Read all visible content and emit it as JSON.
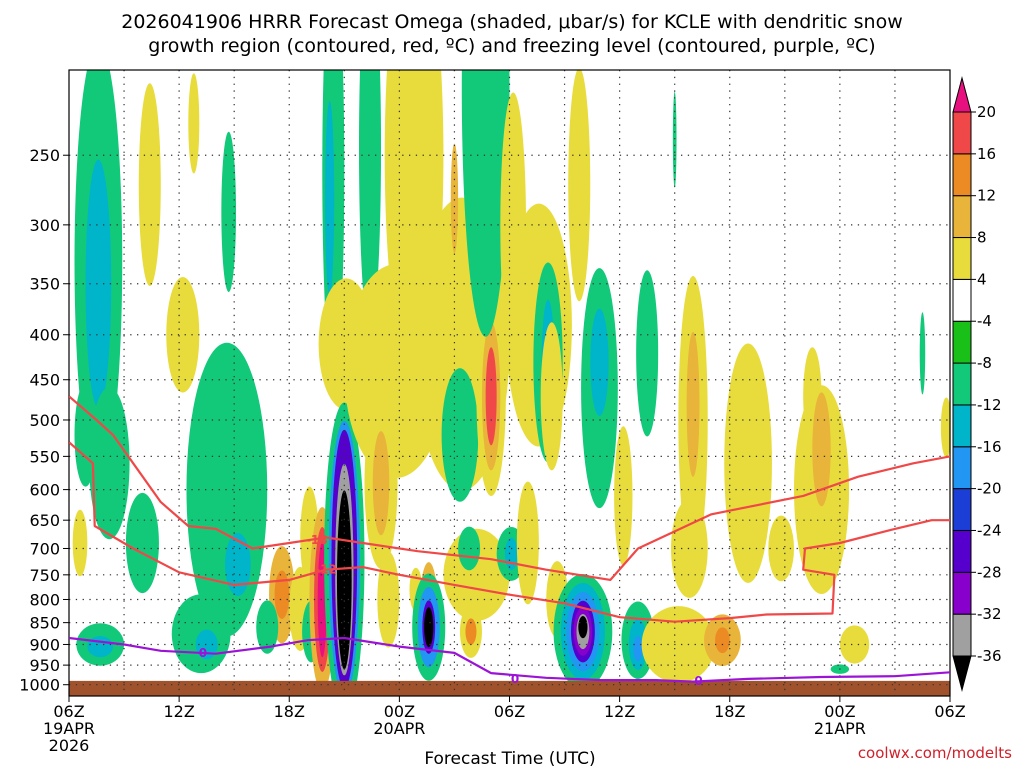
{
  "chart_data": {
    "type": "heatmap",
    "title_line1": "2026041906 HRRR Forecast Omega (shaded, μbar/s) for KCLE with dendritic snow",
    "title_line2": "growth region (contoured, red, ºC) and freezing level (contoured, purple, ºC)",
    "xlabel": "Forecast Time (UTC)",
    "credit": "coolwx.com/modelts",
    "x_range_hours": [
      0,
      48
    ],
    "y_scale": "pressure",
    "y_range_hpa": [
      200,
      1030
    ],
    "y_ticks": [
      250,
      300,
      350,
      400,
      450,
      500,
      550,
      600,
      650,
      700,
      750,
      800,
      850,
      900,
      950,
      1000
    ],
    "x_ticks": [
      {
        "h": 0,
        "l1": "06Z",
        "l2": "19APR",
        "l3": "2026"
      },
      {
        "h": 6,
        "l1": "12Z",
        "l2": "",
        "l3": ""
      },
      {
        "h": 12,
        "l1": "18Z",
        "l2": "",
        "l3": ""
      },
      {
        "h": 18,
        "l1": "00Z",
        "l2": "20APR",
        "l3": ""
      },
      {
        "h": 24,
        "l1": "06Z",
        "l2": "",
        "l3": ""
      },
      {
        "h": 30,
        "l1": "12Z",
        "l2": "",
        "l3": ""
      },
      {
        "h": 36,
        "l1": "18Z",
        "l2": "",
        "l3": ""
      },
      {
        "h": 42,
        "l1": "00Z",
        "l2": "21APR",
        "l3": ""
      },
      {
        "h": 48,
        "l1": "06Z",
        "l2": "",
        "l3": ""
      }
    ],
    "grid": true,
    "colorbar": {
      "levels": [
        -36,
        -32,
        -28,
        -24,
        -20,
        -16,
        -12,
        -8,
        -4,
        4,
        8,
        12,
        16,
        20
      ],
      "colors": [
        "#000000",
        "#a0a0a0",
        "#8800cc",
        "#5500cc",
        "#1b3fd6",
        "#2196f3",
        "#00b5c9",
        "#12c97a",
        "#18c018",
        "#ffffff",
        "#e8dc3c",
        "#e8b43a",
        "#ec8a24",
        "#f04848",
        "#e8107e"
      ]
    },
    "omega_cells": [
      {
        "h": 0.9,
        "p": 520,
        "dh": 0.6,
        "dp": 70,
        "v": -8
      },
      {
        "h": 1.6,
        "p": 330,
        "dh": 1.3,
        "dp": 170,
        "v": -8
      },
      {
        "h": 1.6,
        "p": 350,
        "dh": 0.7,
        "dp": 110,
        "v": -12
      },
      {
        "h": 2.2,
        "p": 560,
        "dh": 1.1,
        "dp": 110,
        "v": -8
      },
      {
        "h": 1.7,
        "p": 900,
        "dh": 1.3,
        "dp": 50,
        "v": -8
      },
      {
        "h": 1.7,
        "p": 905,
        "dh": 0.7,
        "dp": 25,
        "v": -12
      },
      {
        "h": 0.6,
        "p": 690,
        "dh": 0.4,
        "dp": 60,
        "v": 4
      },
      {
        "h": 4.4,
        "p": 270,
        "dh": 0.6,
        "dp": 70,
        "v": 4
      },
      {
        "h": 4.0,
        "p": 690,
        "dh": 0.9,
        "dp": 90,
        "v": -8
      },
      {
        "h": 6.8,
        "p": 230,
        "dh": 0.3,
        "dp": 30,
        "v": 4
      },
      {
        "h": 7.7,
        "p": 515,
        "dh": 0.6,
        "dp": 45,
        "v": 4
      },
      {
        "h": 8.7,
        "p": 290,
        "dh": 0.4,
        "dp": 60,
        "v": -8
      },
      {
        "h": 6.2,
        "p": 400,
        "dh": 0.9,
        "dp": 60,
        "v": 4
      },
      {
        "h": 8.6,
        "p": 600,
        "dh": 2.2,
        "dp": 220,
        "v": -8
      },
      {
        "h": 9.2,
        "p": 730,
        "dh": 0.7,
        "dp": 60,
        "v": -12
      },
      {
        "h": 7.2,
        "p": 875,
        "dh": 1.6,
        "dp": 90,
        "v": -8
      },
      {
        "h": 7.5,
        "p": 900,
        "dh": 0.6,
        "dp": 35,
        "v": -12
      },
      {
        "h": 11.6,
        "p": 790,
        "dh": 0.7,
        "dp": 100,
        "v": 8
      },
      {
        "h": 11.6,
        "p": 790,
        "dh": 0.4,
        "dp": 50,
        "v": 12
      },
      {
        "h": 12.6,
        "p": 820,
        "dh": 0.6,
        "dp": 90,
        "v": 4
      },
      {
        "h": 10.8,
        "p": 860,
        "dh": 0.6,
        "dp": 60,
        "v": -8
      },
      {
        "h": 13.1,
        "p": 680,
        "dh": 0.5,
        "dp": 90,
        "v": 4
      },
      {
        "h": 13.2,
        "p": 870,
        "dh": 0.5,
        "dp": 70,
        "v": -8
      },
      {
        "h": 14.4,
        "p": 260,
        "dh": 0.6,
        "dp": 130,
        "v": -8
      },
      {
        "h": 14.2,
        "p": 280,
        "dh": 0.25,
        "dp": 70,
        "v": -12
      },
      {
        "h": 15.1,
        "p": 410,
        "dh": 1.5,
        "dp": 70,
        "v": 4
      },
      {
        "h": 16.4,
        "p": 245,
        "dh": 0.6,
        "dp": 110,
        "v": -8
      },
      {
        "h": 13.8,
        "p": 800,
        "dh": 0.7,
        "dp": 190,
        "v": 8
      },
      {
        "h": 13.8,
        "p": 800,
        "dh": 0.45,
        "dp": 150,
        "v": 16
      },
      {
        "h": 13.8,
        "p": 800,
        "dh": 0.25,
        "dp": 120,
        "v": 20
      },
      {
        "h": 15.0,
        "p": 720,
        "dh": 1.1,
        "dp": 280,
        "v": -8
      },
      {
        "h": 15.0,
        "p": 720,
        "dh": 0.85,
        "dp": 250,
        "v": -16
      },
      {
        "h": 15.0,
        "p": 720,
        "dh": 0.7,
        "dp": 235,
        "v": -24
      },
      {
        "h": 15.0,
        "p": 740,
        "dh": 0.5,
        "dp": 200,
        "v": -32
      },
      {
        "h": 15.0,
        "p": 760,
        "dh": 0.4,
        "dp": 175,
        "v": -36
      },
      {
        "h": 17.8,
        "p": 440,
        "dh": 2.8,
        "dp": 120,
        "v": 4
      },
      {
        "h": 17.0,
        "p": 590,
        "dh": 0.9,
        "dp": 130,
        "v": 4
      },
      {
        "h": 17.0,
        "p": 590,
        "dh": 0.45,
        "dp": 80,
        "v": 8
      },
      {
        "h": 17.4,
        "p": 800,
        "dh": 0.6,
        "dp": 100,
        "v": 4
      },
      {
        "h": 18.8,
        "p": 250,
        "dh": 1.6,
        "dp": 130,
        "v": 4
      },
      {
        "h": 21.4,
        "p": 410,
        "dh": 2.6,
        "dp": 150,
        "v": 4
      },
      {
        "h": 19.6,
        "p": 820,
        "dh": 0.5,
        "dp": 100,
        "v": 8
      },
      {
        "h": 19.6,
        "p": 820,
        "dh": 0.25,
        "dp": 50,
        "v": 16
      },
      {
        "h": 18.9,
        "p": 780,
        "dh": 0.35,
        "dp": 45,
        "v": 4
      },
      {
        "h": 19.6,
        "p": 860,
        "dh": 0.9,
        "dp": 120,
        "v": -8
      },
      {
        "h": 19.6,
        "p": 860,
        "dh": 0.6,
        "dp": 90,
        "v": -16
      },
      {
        "h": 19.6,
        "p": 860,
        "dh": 0.35,
        "dp": 60,
        "v": -24
      },
      {
        "h": 19.6,
        "p": 860,
        "dh": 0.25,
        "dp": 45,
        "v": -36
      },
      {
        "h": 21.3,
        "p": 520,
        "dh": 1.0,
        "dp": 90,
        "v": -8
      },
      {
        "h": 21.0,
        "p": 280,
        "dh": 0.2,
        "dp": 40,
        "v": 8
      },
      {
        "h": 22.2,
        "p": 750,
        "dh": 1.8,
        "dp": 90,
        "v": 4
      },
      {
        "h": 21.8,
        "p": 700,
        "dh": 0.6,
        "dp": 40,
        "v": -8
      },
      {
        "h": 21.9,
        "p": 870,
        "dh": 0.6,
        "dp": 60,
        "v": 4
      },
      {
        "h": 21.9,
        "p": 870,
        "dh": 0.3,
        "dp": 30,
        "v": 12
      },
      {
        "h": 23.0,
        "p": 470,
        "dh": 0.8,
        "dp": 120,
        "v": 4
      },
      {
        "h": 23.0,
        "p": 470,
        "dh": 0.5,
        "dp": 90,
        "v": 8
      },
      {
        "h": 23.0,
        "p": 470,
        "dh": 0.3,
        "dp": 60,
        "v": 16
      },
      {
        "h": 22.7,
        "p": 210,
        "dh": 1.3,
        "dp": 120,
        "v": -8
      },
      {
        "h": 24.1,
        "p": 710,
        "dh": 0.8,
        "dp": 50,
        "v": -8
      },
      {
        "h": 24.1,
        "p": 710,
        "dh": 0.35,
        "dp": 30,
        "v": -12
      },
      {
        "h": 24.2,
        "p": 300,
        "dh": 0.7,
        "dp": 100,
        "v": 4
      },
      {
        "h": 25.6,
        "p": 390,
        "dh": 1.8,
        "dp": 120,
        "v": 4
      },
      {
        "h": 25.0,
        "p": 690,
        "dh": 0.6,
        "dp": 110,
        "v": 4
      },
      {
        "h": 26.1,
        "p": 430,
        "dh": 0.8,
        "dp": 110,
        "v": -8
      },
      {
        "h": 26.1,
        "p": 430,
        "dh": 0.35,
        "dp": 70,
        "v": -12
      },
      {
        "h": 26.3,
        "p": 470,
        "dh": 0.6,
        "dp": 90,
        "v": 4
      },
      {
        "h": 27.8,
        "p": 270,
        "dh": 0.6,
        "dp": 80,
        "v": 4
      },
      {
        "h": 28.9,
        "p": 460,
        "dh": 1.0,
        "dp": 140,
        "v": -8
      },
      {
        "h": 28.9,
        "p": 430,
        "dh": 0.5,
        "dp": 60,
        "v": -12
      },
      {
        "h": 26.6,
        "p": 800,
        "dh": 0.6,
        "dp": 80,
        "v": 4
      },
      {
        "h": 28.0,
        "p": 870,
        "dh": 1.6,
        "dp": 130,
        "v": -8
      },
      {
        "h": 28.0,
        "p": 870,
        "dh": 1.2,
        "dp": 110,
        "v": -12
      },
      {
        "h": 28.0,
        "p": 870,
        "dh": 0.9,
        "dp": 90,
        "v": -16
      },
      {
        "h": 28.0,
        "p": 870,
        "dh": 0.65,
        "dp": 70,
        "v": -24
      },
      {
        "h": 28.0,
        "p": 870,
        "dh": 0.5,
        "dp": 55,
        "v": -28
      },
      {
        "h": 28.0,
        "p": 870,
        "dh": 0.35,
        "dp": 40,
        "v": -32
      },
      {
        "h": 28.0,
        "p": 860,
        "dh": 0.25,
        "dp": 25,
        "v": -36
      },
      {
        "h": 30.2,
        "p": 610,
        "dh": 0.5,
        "dp": 110,
        "v": 4
      },
      {
        "h": 31.0,
        "p": 890,
        "dh": 0.9,
        "dp": 90,
        "v": -8
      },
      {
        "h": 31.0,
        "p": 900,
        "dh": 0.5,
        "dp": 60,
        "v": -12
      },
      {
        "h": 31.0,
        "p": 910,
        "dh": 0.25,
        "dp": 30,
        "v": -16
      },
      {
        "h": 31.5,
        "p": 420,
        "dh": 0.6,
        "dp": 90,
        "v": -8
      },
      {
        "h": 33.0,
        "p": 240,
        "dh": 0.1,
        "dp": 30,
        "v": -8
      },
      {
        "h": 34.0,
        "p": 500,
        "dh": 0.8,
        "dp": 180,
        "v": 4
      },
      {
        "h": 34.0,
        "p": 480,
        "dh": 0.35,
        "dp": 90,
        "v": 8
      },
      {
        "h": 33.8,
        "p": 700,
        "dh": 1.0,
        "dp": 90,
        "v": 4
      },
      {
        "h": 33.2,
        "p": 900,
        "dh": 2.0,
        "dp": 90,
        "v": 4
      },
      {
        "h": 35.6,
        "p": 890,
        "dh": 1.0,
        "dp": 60,
        "v": 8
      },
      {
        "h": 35.6,
        "p": 890,
        "dh": 0.4,
        "dp": 30,
        "v": 12
      },
      {
        "h": 37.0,
        "p": 560,
        "dh": 1.3,
        "dp": 170,
        "v": 4
      },
      {
        "h": 41.0,
        "p": 600,
        "dh": 1.5,
        "dp": 160,
        "v": 4
      },
      {
        "h": 40.5,
        "p": 470,
        "dh": 0.5,
        "dp": 60,
        "v": 4
      },
      {
        "h": 41.0,
        "p": 540,
        "dh": 0.5,
        "dp": 80,
        "v": 8
      },
      {
        "h": 38.8,
        "p": 700,
        "dh": 0.7,
        "dp": 60,
        "v": 4
      },
      {
        "h": 42.8,
        "p": 900,
        "dh": 0.8,
        "dp": 45,
        "v": 4
      },
      {
        "h": 42.0,
        "p": 960,
        "dh": 0.5,
        "dp": 12,
        "v": -8
      },
      {
        "h": 46.5,
        "p": 420,
        "dh": 0.15,
        "dp": 45,
        "v": -8
      },
      {
        "h": 47.8,
        "p": 510,
        "dh": 0.3,
        "dp": 40,
        "v": 4
      }
    ],
    "dgz_contours": [
      {
        "label": "-12",
        "label_at": [
          14.0,
          740
        ],
        "points": [
          [
            0,
            530
          ],
          [
            1.3,
            560
          ],
          [
            1.4,
            660
          ],
          [
            3.5,
            700
          ],
          [
            6,
            745
          ],
          [
            9,
            770
          ],
          [
            12,
            760
          ],
          [
            14,
            740
          ],
          [
            16,
            735
          ],
          [
            18,
            750
          ],
          [
            21,
            770
          ],
          [
            24,
            790
          ],
          [
            27,
            808
          ],
          [
            30,
            838
          ],
          [
            33,
            848
          ],
          [
            36,
            840
          ],
          [
            38,
            832
          ],
          [
            41.6,
            830
          ],
          [
            41.7,
            750
          ],
          [
            40.0,
            740
          ],
          [
            40.1,
            700
          ],
          [
            42,
            690
          ],
          [
            45,
            665
          ],
          [
            47,
            650
          ],
          [
            48,
            650
          ]
        ]
      },
      {
        "label": "-18",
        "label_at": [
          13.5,
          685
        ],
        "points": [
          [
            0,
            470
          ],
          [
            1.5,
            500
          ],
          [
            2.4,
            520
          ],
          [
            3.5,
            560
          ],
          [
            5,
            620
          ],
          [
            6.5,
            660
          ],
          [
            8,
            665
          ],
          [
            10,
            700
          ],
          [
            12,
            690
          ],
          [
            14,
            680
          ],
          [
            16,
            690
          ],
          [
            19,
            705
          ],
          [
            23,
            720
          ],
          [
            26,
            740
          ],
          [
            29.5,
            760
          ],
          [
            31,
            700
          ],
          [
            35,
            640
          ],
          [
            40,
            610
          ],
          [
            43,
            580
          ],
          [
            46,
            560
          ],
          [
            48,
            550
          ]
        ]
      }
    ],
    "freezing_contour": {
      "label": "0",
      "label_positions": [
        [
          7.3,
          920
        ],
        [
          24.3,
          985
        ],
        [
          34.3,
          990
        ]
      ],
      "points": [
        [
          0,
          885
        ],
        [
          3,
          900
        ],
        [
          5,
          915
        ],
        [
          8,
          922
        ],
        [
          11,
          905
        ],
        [
          13,
          890
        ],
        [
          15,
          885
        ],
        [
          18,
          905
        ],
        [
          21,
          920
        ],
        [
          23,
          970
        ],
        [
          26,
          982
        ],
        [
          29,
          988
        ],
        [
          32,
          988
        ],
        [
          34,
          992
        ],
        [
          37,
          985
        ],
        [
          41,
          980
        ],
        [
          45,
          978
        ],
        [
          48,
          968
        ]
      ]
    },
    "terrain_top_hpa": 990
  }
}
